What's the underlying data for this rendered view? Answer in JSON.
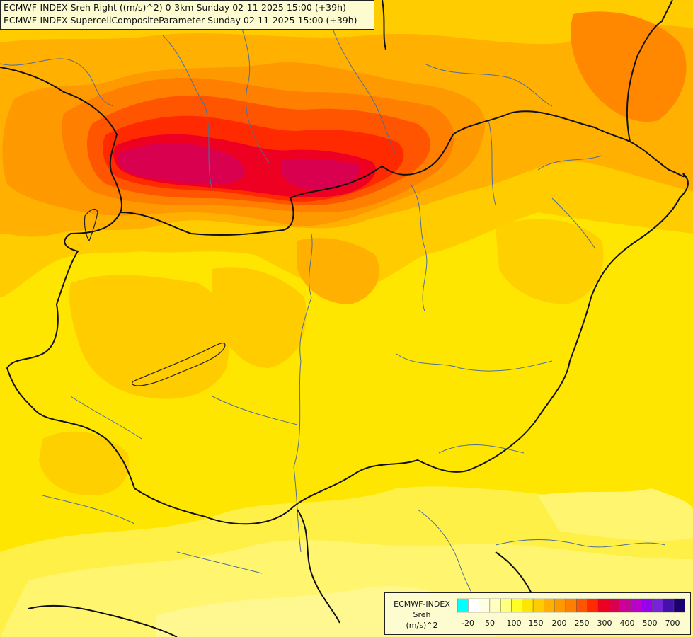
{
  "title": {
    "line1": "ECMWF-INDEX Sreh Right ((m/s)^2) 0-3km Sunday 02-11-2025 15:00 (+39h)",
    "line2": "ECMWF-INDEX SupercellCompositeParameter Sunday 02-11-2025 15:00 (+39h)"
  },
  "legend": {
    "model": "ECMWF-INDEX",
    "variable": "Sreh",
    "unit": "(m/s)^2",
    "colors": [
      "#00ffff",
      "#ffffff",
      "#ffffe6",
      "#ffffbf",
      "#ffff80",
      "#ffff26",
      "#ffe600",
      "#ffcc00",
      "#ffb000",
      "#ff9900",
      "#ff7f00",
      "#ff5500",
      "#ff2a00",
      "#ee0022",
      "#d90050",
      "#cc0099",
      "#bb00cc",
      "#9900ee",
      "#7722dd",
      "#4411aa",
      "#1a0070"
    ],
    "tick_labels": [
      "-20",
      "50",
      "100",
      "150",
      "200",
      "250",
      "300",
      "400",
      "500",
      "700"
    ]
  }
}
